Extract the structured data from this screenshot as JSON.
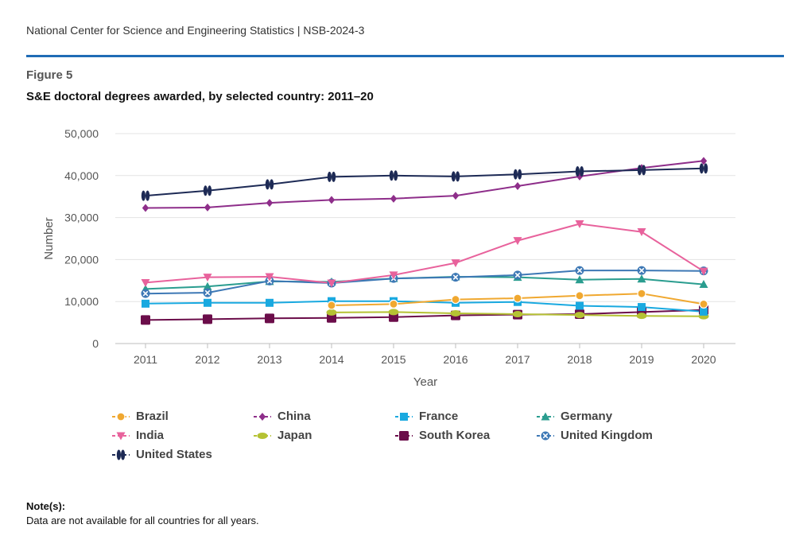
{
  "header": {
    "text": "National Center for Science and Engineering Statistics  |  NSB-2024-3",
    "rule_color": "#1f6cb5"
  },
  "figure": {
    "label": "Figure 5",
    "title": "S&E doctoral degrees awarded, by selected country: 2011–20"
  },
  "chart_data": {
    "type": "line",
    "title": "S&E doctoral degrees awarded, by selected country: 2011–20",
    "xlabel": "Year",
    "ylabel": "Number",
    "ylim": [
      0,
      50000
    ],
    "yticks": [
      0,
      10000,
      20000,
      30000,
      40000,
      50000
    ],
    "ytick_labels": [
      "0",
      "10,000",
      "20,000",
      "30,000",
      "40,000",
      "50,000"
    ],
    "x": [
      2011,
      2012,
      2013,
      2014,
      2015,
      2016,
      2017,
      2018,
      2019,
      2020
    ],
    "x_labels": [
      "2011",
      "2012",
      "2013",
      "2014",
      "2015",
      "2016",
      "2017",
      "2018",
      "2019",
      "2020"
    ],
    "grid": true,
    "legend_position": "bottom",
    "series": [
      {
        "name": "South Korea",
        "color": "#6b0d4a",
        "marker": "square-large",
        "values": [
          5600,
          5800,
          6000,
          6100,
          6300,
          6700,
          6900,
          7000,
          7500,
          8000
        ]
      },
      {
        "name": "Japan",
        "color": "#b5c234",
        "marker": "ellipse",
        "values": [
          null,
          null,
          null,
          7400,
          7500,
          7200,
          7000,
          6800,
          6600,
          6500
        ]
      },
      {
        "name": "France",
        "color": "#19a9e0",
        "marker": "square",
        "values": [
          9500,
          9700,
          9700,
          10100,
          10100,
          9700,
          9900,
          9000,
          8700,
          7600
        ]
      },
      {
        "name": "Brazil",
        "color": "#f0a830",
        "marker": "circle",
        "values": [
          null,
          null,
          null,
          9100,
          9400,
          10500,
          10800,
          11400,
          11900,
          9400
        ]
      },
      {
        "name": "Germany",
        "color": "#2a9d8f",
        "marker": "triangle",
        "values": [
          13000,
          13600,
          14800,
          14700,
          15500,
          15900,
          15800,
          15200,
          15400,
          14100
        ]
      },
      {
        "name": "United Kingdom",
        "color": "#3d78b5",
        "marker": "circle-x",
        "values": [
          11900,
          12100,
          14900,
          14400,
          15500,
          15800,
          16300,
          17400,
          17400,
          17300
        ]
      },
      {
        "name": "India",
        "color": "#e8629c",
        "marker": "triangle-down",
        "values": [
          14500,
          15800,
          15900,
          14400,
          16300,
          19200,
          24500,
          28500,
          26600,
          17200
        ]
      },
      {
        "name": "China",
        "color": "#8e2e8a",
        "marker": "diamond",
        "values": [
          32300,
          32400,
          33500,
          34200,
          34500,
          35200,
          37500,
          39800,
          41800,
          43500
        ]
      },
      {
        "name": "United States",
        "color": "#1d2a55",
        "marker": "double-ellipse",
        "values": [
          35200,
          36400,
          37900,
          39700,
          40000,
          39800,
          40300,
          41000,
          41300,
          41700
        ]
      }
    ]
  },
  "legend": [
    {
      "name": "Brazil",
      "color": "#f0a830",
      "marker": "circle"
    },
    {
      "name": "China",
      "color": "#8e2e8a",
      "marker": "diamond"
    },
    {
      "name": "France",
      "color": "#19a9e0",
      "marker": "square"
    },
    {
      "name": "Germany",
      "color": "#2a9d8f",
      "marker": "triangle"
    },
    {
      "name": "India",
      "color": "#e8629c",
      "marker": "triangle-down"
    },
    {
      "name": "Japan",
      "color": "#b5c234",
      "marker": "ellipse"
    },
    {
      "name": "South Korea",
      "color": "#6b0d4a",
      "marker": "square-large"
    },
    {
      "name": "United Kingdom",
      "color": "#3d78b5",
      "marker": "circle-x"
    },
    {
      "name": "United States",
      "color": "#1d2a55",
      "marker": "double-ellipse"
    }
  ],
  "note": {
    "title": "Note(s):",
    "text": "Data are not available for all countries for all years."
  }
}
